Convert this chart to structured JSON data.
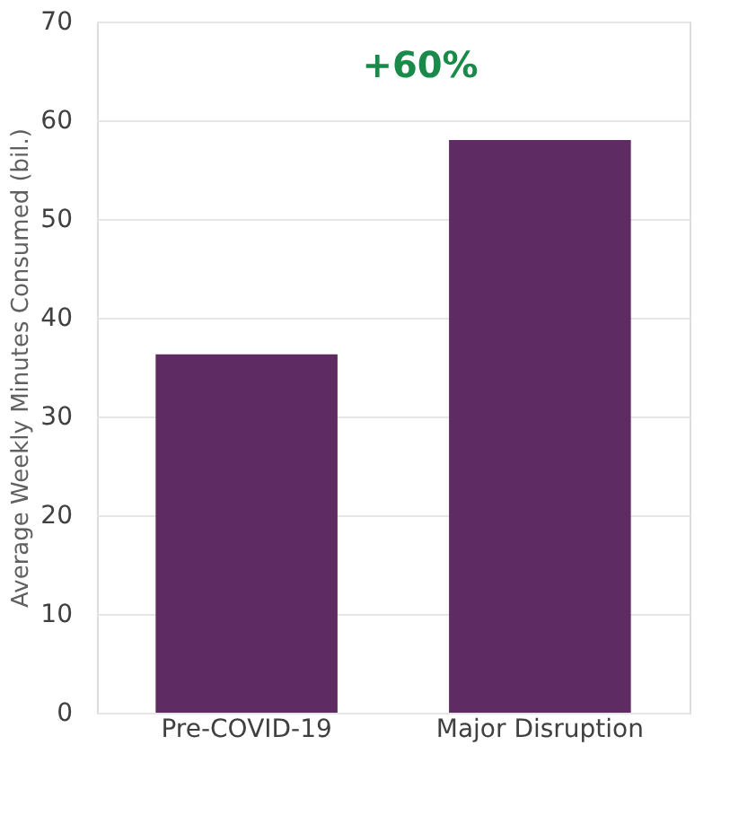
{
  "chart_data": {
    "type": "bar",
    "ylabel": "Average Weekly Minutes Consumed  (bil.)",
    "categories": [
      "Pre-COVID-19",
      "Major Disruption"
    ],
    "values": [
      36.3,
      58
    ],
    "color": "#5e2c62",
    "ylim": [
      0,
      70
    ],
    "yticks": [
      0,
      10,
      20,
      30,
      40,
      50,
      60,
      70
    ],
    "grid": "y",
    "annotations": [
      "+60%"
    ]
  }
}
